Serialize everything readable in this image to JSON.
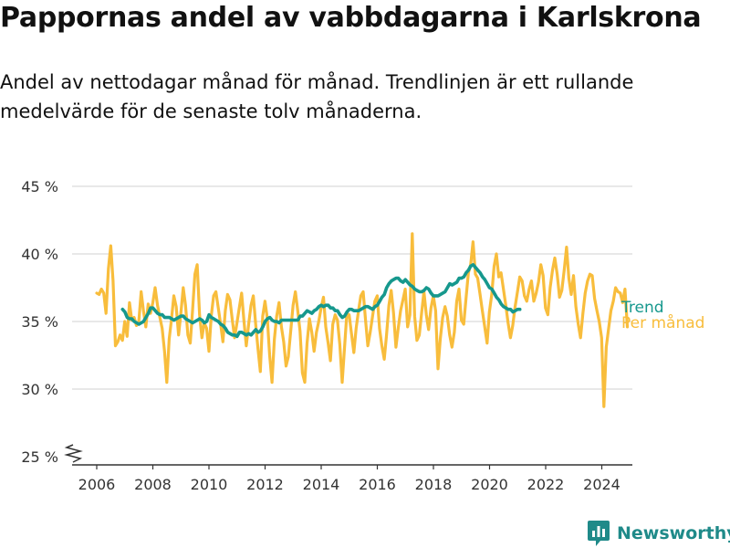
{
  "title": "Pappornas andel av vabbdagarna i Karlskrona",
  "subtitle": "Andel av nettodagar månad för månad. Trendlinjen är ett rullande medelvärde för de senaste tolv månaderna.",
  "brand": {
    "name": "Newsworthy"
  },
  "colors": {
    "monthly": "#f8bd3c",
    "trend": "#16988d",
    "grid": "#d9d9d9",
    "axis": "#333333",
    "brand": "#1f8a89"
  },
  "chart_data": {
    "type": "line",
    "title": "Pappornas andel av vabbdagarna i Karlskrona",
    "xlabel": "",
    "ylabel": "",
    "y_ticks": [
      25,
      30,
      35,
      40,
      45
    ],
    "y_tick_labels": [
      "25 %",
      "30 %",
      "35 %",
      "40 %",
      "45 %"
    ],
    "x_ticks": [
      2006,
      2008,
      2010,
      2012,
      2014,
      2016,
      2018,
      2020,
      2022,
      2024
    ],
    "xlim": [
      2005.25,
      2025.0
    ],
    "ylim": [
      25,
      45
    ],
    "legend": "end-of-line labels",
    "series": [
      {
        "name": "Per månad",
        "color": "#f8bd3c",
        "x_start": 2006.0,
        "step": 0.0833,
        "values": [
          37.1,
          37.0,
          37.4,
          37.1,
          35.6,
          38.9,
          40.6,
          38.0,
          33.2,
          33.5,
          34.0,
          33.6,
          35.0,
          33.9,
          36.4,
          35.1,
          35.3,
          34.7,
          35.0,
          37.2,
          35.8,
          34.6,
          36.3,
          35.6,
          36.4,
          37.5,
          36.2,
          35.3,
          34.5,
          32.8,
          30.5,
          33.7,
          35.2,
          36.9,
          36.1,
          34.0,
          35.6,
          37.5,
          36.2,
          34.0,
          33.4,
          35.8,
          38.5,
          39.2,
          35.5,
          33.8,
          34.9,
          34.5,
          32.8,
          35.4,
          36.9,
          37.2,
          36.0,
          34.8,
          33.5,
          35.8,
          37.0,
          36.6,
          35.1,
          33.8,
          34.9,
          36.0,
          37.1,
          35.0,
          33.2,
          34.8,
          36.2,
          36.9,
          34.8,
          33.0,
          31.3,
          35.4,
          36.5,
          35.2,
          32.5,
          30.5,
          33.7,
          35.4,
          36.4,
          34.6,
          33.5,
          31.7,
          32.4,
          34.3,
          36.2,
          37.2,
          35.8,
          34.3,
          31.2,
          30.5,
          33.4,
          35.2,
          34.2,
          32.8,
          34.2,
          35.0,
          36.0,
          36.8,
          34.6,
          33.4,
          32.1,
          34.8,
          35.5,
          35.1,
          33.3,
          30.5,
          33.0,
          35.6,
          35.5,
          34.1,
          32.7,
          34.5,
          35.8,
          36.9,
          37.2,
          35.1,
          33.2,
          34.2,
          35.4,
          36.5,
          36.9,
          34.5,
          33.2,
          32.2,
          34.0,
          36.2,
          37.3,
          35.6,
          33.1,
          34.5,
          35.8,
          36.6,
          37.4,
          34.6,
          35.5,
          41.5,
          35.4,
          33.6,
          34.0,
          35.6,
          37.2,
          35.5,
          34.4,
          36.0,
          36.9,
          35.8,
          31.5,
          33.7,
          35.3,
          36.1,
          35.4,
          34.0,
          33.1,
          34.2,
          36.5,
          37.4,
          35.1,
          34.8,
          36.7,
          38.6,
          39.2,
          40.9,
          38.5,
          38.2,
          37.0,
          35.8,
          34.6,
          33.4,
          35.7,
          37.0,
          39.1,
          40.0,
          38.3,
          38.6,
          37.4,
          36.2,
          34.9,
          33.8,
          34.7,
          36.1,
          37.2,
          38.3,
          38.0,
          36.9,
          36.5,
          37.4,
          38.0,
          36.5,
          37.1,
          37.9,
          39.2,
          38.4,
          36.0,
          35.5,
          37.5,
          38.8,
          39.7,
          38.5,
          36.8,
          37.3,
          38.8,
          40.5,
          38.2,
          37.0,
          38.4,
          36.1,
          34.8,
          33.8,
          35.6,
          37.1,
          38.0,
          38.5,
          38.4,
          36.7,
          35.8,
          35.0,
          33.8,
          28.7,
          33.1,
          34.5,
          35.8,
          36.5,
          37.5,
          37.2,
          37.1,
          36.4,
          37.4,
          34.6
        ]
      },
      {
        "name": "Trend",
        "color": "#16988d",
        "x_start": 2006.92,
        "step": 0.0833,
        "values": [
          35.9,
          35.7,
          35.3,
          35.2,
          35.2,
          35.0,
          34.9,
          34.8,
          34.9,
          35.0,
          35.3,
          35.6,
          36.0,
          36.0,
          35.8,
          35.6,
          35.5,
          35.5,
          35.3,
          35.3,
          35.3,
          35.2,
          35.1,
          35.2,
          35.3,
          35.4,
          35.4,
          35.2,
          35.1,
          35.0,
          34.9,
          35.0,
          35.1,
          35.2,
          35.1,
          34.9,
          35.0,
          35.5,
          35.3,
          35.2,
          35.1,
          35.0,
          34.8,
          34.7,
          34.5,
          34.2,
          34.1,
          34.0,
          34.0,
          33.9,
          34.2,
          34.2,
          34.1,
          34.0,
          34.1,
          34.0,
          34.2,
          34.4,
          34.2,
          34.3,
          34.6,
          35.0,
          35.2,
          35.3,
          35.1,
          35.0,
          35.0,
          34.9,
          35.1,
          35.1,
          35.1,
          35.1,
          35.1,
          35.1,
          35.1,
          35.1,
          35.4,
          35.4,
          35.6,
          35.8,
          35.7,
          35.6,
          35.8,
          35.9,
          36.1,
          36.2,
          36.1,
          36.2,
          36.2,
          36.0,
          36.0,
          35.8,
          35.8,
          35.5,
          35.3,
          35.4,
          35.7,
          35.9,
          35.9,
          35.8,
          35.8,
          35.8,
          35.9,
          36.0,
          36.1,
          36.1,
          36.0,
          35.9,
          36.1,
          36.2,
          36.5,
          36.8,
          37.0,
          37.5,
          37.8,
          38.0,
          38.1,
          38.2,
          38.2,
          38.0,
          37.9,
          38.1,
          37.9,
          37.7,
          37.6,
          37.4,
          37.3,
          37.2,
          37.2,
          37.3,
          37.5,
          37.4,
          37.1,
          36.9,
          36.9,
          36.9,
          37.0,
          37.1,
          37.2,
          37.5,
          37.8,
          37.7,
          37.8,
          37.9,
          38.2,
          38.2,
          38.3,
          38.6,
          38.8,
          39.1,
          39.2,
          39.0,
          38.8,
          38.6,
          38.3,
          38.1,
          37.8,
          37.5,
          37.4,
          37.1,
          36.8,
          36.6,
          36.3,
          36.1,
          36.0,
          35.9,
          35.9,
          35.7,
          35.8,
          35.9,
          35.9
        ]
      }
    ]
  }
}
